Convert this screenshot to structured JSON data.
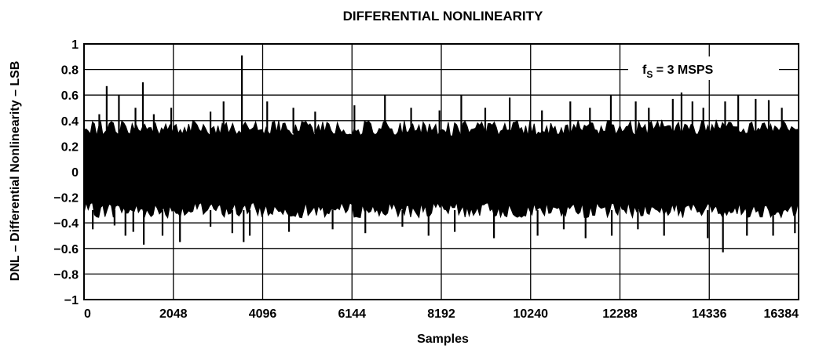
{
  "chart_data": {
    "type": "line",
    "title": "DIFFERENTIAL NONLINEARITY",
    "xlabel": "Samples",
    "ylabel": "DNL – Differential Nonlinearity – LSB",
    "xlim": [
      0,
      16384
    ],
    "ylim": [
      -1,
      1
    ],
    "x_ticks": [
      0,
      2048,
      4096,
      6144,
      8192,
      10240,
      12288,
      14336,
      16384
    ],
    "x_tick_labels": [
      "0",
      "2048",
      "4096",
      "6144",
      "8192",
      "10240",
      "12288",
      "14336",
      "16384"
    ],
    "y_ticks": [
      1,
      0.8,
      0.6,
      0.4,
      0.2,
      0,
      -0.2,
      -0.4,
      -0.6,
      -0.8,
      -1
    ],
    "y_tick_labels": [
      "1",
      "0.8",
      "0.6",
      "0.4",
      "0.2",
      "0",
      "−0.2",
      "−0.4",
      "−0.6",
      "−0.8",
      "−1"
    ],
    "grid": true,
    "legend": "none",
    "annotation": {
      "main": "f",
      "subscript": "S",
      "rest": " = 3 MSPS"
    },
    "series": [
      {
        "band_upper": 0.4,
        "band_lower": -0.36,
        "positive_spikes": [
          [
            350,
            0.45
          ],
          [
            520,
            0.67
          ],
          [
            800,
            0.6
          ],
          [
            1180,
            0.5
          ],
          [
            1350,
            0.7
          ],
          [
            1600,
            0.45
          ],
          [
            2000,
            0.5
          ],
          [
            2900,
            0.47
          ],
          [
            3200,
            0.55
          ],
          [
            3620,
            0.91
          ],
          [
            4200,
            0.55
          ],
          [
            4800,
            0.5
          ],
          [
            5300,
            0.47
          ],
          [
            6200,
            0.52
          ],
          [
            6900,
            0.6
          ],
          [
            7500,
            0.5
          ],
          [
            8150,
            0.48
          ],
          [
            8650,
            0.6
          ],
          [
            9200,
            0.5
          ],
          [
            9760,
            0.58
          ],
          [
            10500,
            0.48
          ],
          [
            11150,
            0.55
          ],
          [
            11600,
            0.5
          ],
          [
            12080,
            0.6
          ],
          [
            12650,
            0.55
          ],
          [
            12950,
            0.5
          ],
          [
            13500,
            0.57
          ],
          [
            13700,
            0.62
          ],
          [
            13950,
            0.55
          ],
          [
            14200,
            0.5
          ],
          [
            14700,
            0.55
          ],
          [
            15000,
            0.6
          ],
          [
            15400,
            0.57
          ],
          [
            15700,
            0.56
          ],
          [
            16000,
            0.5
          ]
        ],
        "negative_spikes": [
          [
            200,
            -0.45
          ],
          [
            700,
            -0.42
          ],
          [
            950,
            -0.5
          ],
          [
            1130,
            -0.47
          ],
          [
            1370,
            -0.57
          ],
          [
            1800,
            -0.5
          ],
          [
            2200,
            -0.55
          ],
          [
            2900,
            -0.43
          ],
          [
            3400,
            -0.48
          ],
          [
            3660,
            -0.55
          ],
          [
            3800,
            -0.5
          ],
          [
            4700,
            -0.47
          ],
          [
            5700,
            -0.45
          ],
          [
            6450,
            -0.48
          ],
          [
            7300,
            -0.43
          ],
          [
            7900,
            -0.5
          ],
          [
            8500,
            -0.47
          ],
          [
            9400,
            -0.52
          ],
          [
            10400,
            -0.5
          ],
          [
            11000,
            -0.45
          ],
          [
            11500,
            -0.52
          ],
          [
            12100,
            -0.5
          ],
          [
            12700,
            -0.45
          ],
          [
            13300,
            -0.5
          ],
          [
            14300,
            -0.52
          ],
          [
            14650,
            -0.63
          ],
          [
            15200,
            -0.5
          ],
          [
            15800,
            -0.5
          ],
          [
            16300,
            -0.48
          ]
        ]
      }
    ]
  }
}
